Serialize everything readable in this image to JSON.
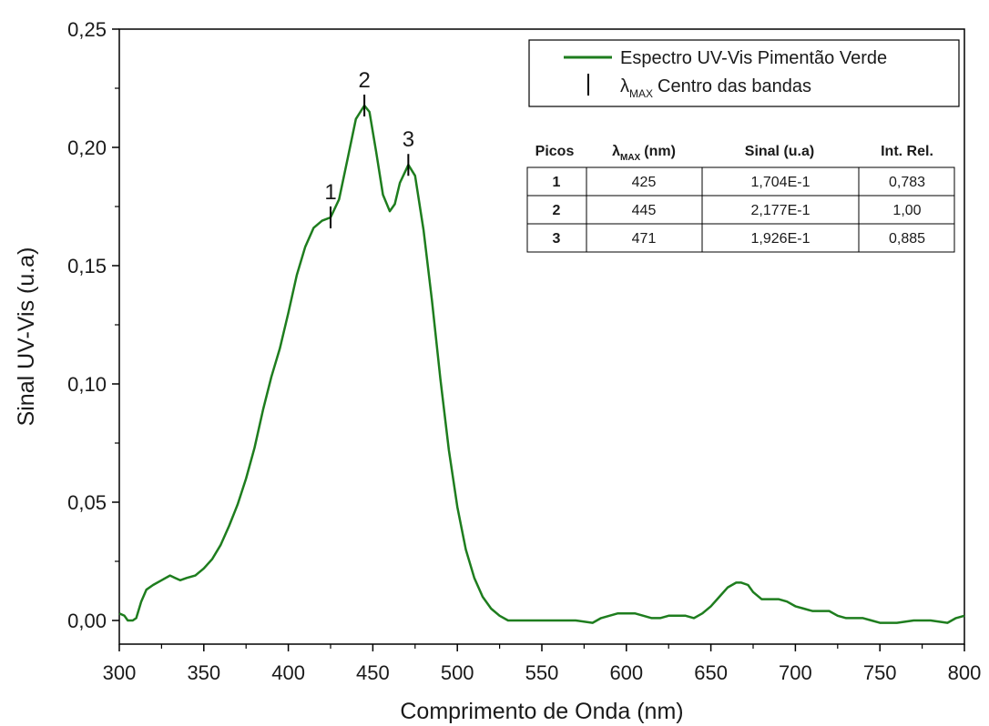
{
  "chart_data": {
    "type": "line",
    "xlabel": "Comprimento de Onda (nm)",
    "ylabel": "Sinal UV-Vis (u.a)",
    "xlim": [
      300,
      800
    ],
    "ylim": [
      -0.01,
      0.25
    ],
    "x_ticks": [
      300,
      350,
      400,
      450,
      500,
      550,
      600,
      650,
      700,
      750,
      800
    ],
    "x_tick_labels": [
      "300",
      "350",
      "400",
      "450",
      "500",
      "550",
      "600",
      "650",
      "700",
      "750",
      "800"
    ],
    "y_ticks": [
      0.0,
      0.05,
      0.1,
      0.15,
      0.2,
      0.25
    ],
    "y_tick_labels": [
      "0,00",
      "0,05",
      "0,10",
      "0,15",
      "0,20",
      "0,25"
    ],
    "grid": false,
    "line_color": "#1e7d1e",
    "series": [
      {
        "name": "Espectro UV-Vis Pimentão Verde",
        "x": [
          300,
          303,
          305,
          308,
          310,
          313,
          316,
          320,
          325,
          330,
          333,
          336,
          340,
          345,
          350,
          355,
          360,
          365,
          370,
          375,
          380,
          385,
          390,
          395,
          400,
          405,
          410,
          415,
          420,
          425,
          430,
          435,
          440,
          445,
          448,
          452,
          456,
          460,
          463,
          466,
          471,
          475,
          480,
          485,
          490,
          495,
          500,
          505,
          510,
          515,
          520,
          525,
          530,
          540,
          550,
          560,
          570,
          580,
          585,
          590,
          595,
          600,
          605,
          610,
          615,
          620,
          625,
          630,
          635,
          640,
          645,
          650,
          655,
          660,
          665,
          668,
          672,
          675,
          680,
          685,
          690,
          695,
          700,
          705,
          710,
          715,
          720,
          725,
          730,
          740,
          745,
          750,
          760,
          770,
          780,
          790,
          795,
          800
        ],
        "y": [
          0.003,
          0.002,
          0.0,
          0.0,
          0.001,
          0.008,
          0.013,
          0.015,
          0.017,
          0.019,
          0.018,
          0.017,
          0.018,
          0.019,
          0.022,
          0.026,
          0.032,
          0.04,
          0.049,
          0.06,
          0.073,
          0.089,
          0.103,
          0.115,
          0.13,
          0.146,
          0.158,
          0.166,
          0.169,
          0.1704,
          0.178,
          0.195,
          0.212,
          0.2177,
          0.215,
          0.198,
          0.18,
          0.173,
          0.176,
          0.185,
          0.1926,
          0.188,
          0.165,
          0.135,
          0.102,
          0.072,
          0.048,
          0.03,
          0.018,
          0.01,
          0.005,
          0.002,
          0.0,
          0.0,
          0.0,
          0.0,
          0.0,
          -0.001,
          0.001,
          0.002,
          0.003,
          0.003,
          0.003,
          0.002,
          0.001,
          0.001,
          0.002,
          0.002,
          0.002,
          0.001,
          0.003,
          0.006,
          0.01,
          0.014,
          0.016,
          0.016,
          0.015,
          0.012,
          0.009,
          0.009,
          0.009,
          0.008,
          0.006,
          0.005,
          0.004,
          0.004,
          0.004,
          0.002,
          0.001,
          0.001,
          0.0,
          -0.001,
          -0.001,
          0.0,
          0.0,
          -0.001,
          0.001,
          0.002
        ]
      }
    ],
    "peak_markers": [
      {
        "label": "1",
        "x": 425,
        "y": 0.1704
      },
      {
        "label": "2",
        "x": 445,
        "y": 0.2177
      },
      {
        "label": "3",
        "x": 471,
        "y": 0.1926
      }
    ],
    "legend": {
      "placement": "top-right",
      "line_label": "Espectro UV-Vis Pimentão Verde",
      "marker_symbol": "λ",
      "marker_sub": "MAX",
      "marker_label": "Centro das bandas"
    },
    "table": {
      "headers": {
        "picos": "Picos",
        "lambda_symbol": "λ",
        "lambda_sub": "MAX",
        "lambda_unit": "(nm)",
        "sinal": "Sinal (u.a)",
        "int_rel": "Int. Rel."
      },
      "rows": [
        {
          "pico": "1",
          "lambda": "425",
          "sinal": "1,704E-1",
          "int_rel": "0,783"
        },
        {
          "pico": "2",
          "lambda": "445",
          "sinal": "2,177E-1",
          "int_rel": "1,00"
        },
        {
          "pico": "3",
          "lambda": "471",
          "sinal": "1,926E-1",
          "int_rel": "0,885"
        }
      ]
    }
  }
}
